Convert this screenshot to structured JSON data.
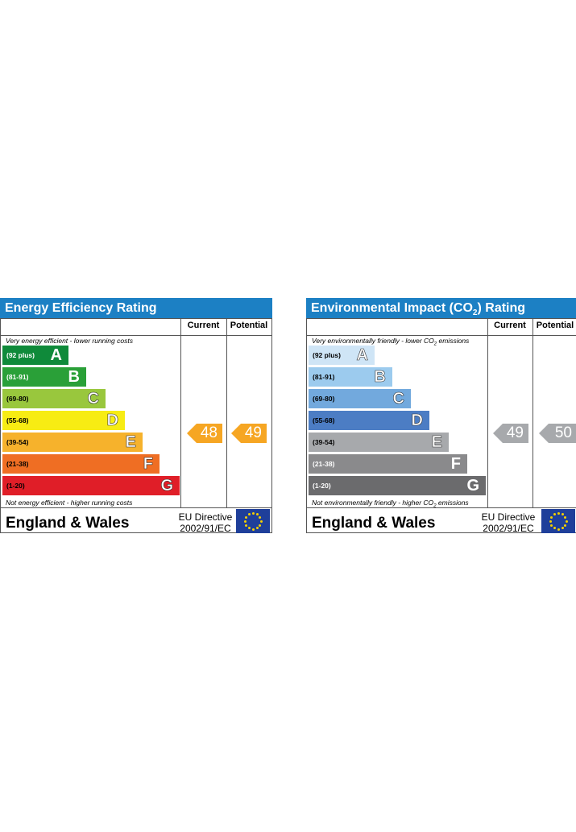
{
  "chart_data": [
    {
      "type": "bar",
      "title": "Energy Efficiency Rating",
      "columns": [
        "Current",
        "Potential"
      ],
      "top_note": "Very energy efficient - lower running costs",
      "bottom_note": "Not energy efficient - higher running costs",
      "bands": [
        {
          "range": "(92 plus)",
          "letter": "A",
          "color": "#0f8a3a",
          "text_color": "#ffffff"
        },
        {
          "range": "(81-91)",
          "letter": "B",
          "color": "#2aa038",
          "text_color": "#ffffff"
        },
        {
          "range": "(69-80)",
          "letter": "C",
          "color": "#99c73d",
          "text_color": "#000000"
        },
        {
          "range": "(55-68)",
          "letter": "D",
          "color": "#f7ec13",
          "text_color": "#000000"
        },
        {
          "range": "(39-54)",
          "letter": "E",
          "color": "#f6b22c",
          "text_color": "#000000"
        },
        {
          "range": "(21-38)",
          "letter": "F",
          "color": "#ef6e23",
          "text_color": "#000000"
        },
        {
          "range": "(1-20)",
          "letter": "G",
          "color": "#e01e28",
          "text_color": "#000000"
        }
      ],
      "current": {
        "value": 48,
        "band": "E",
        "color": "#f6a623"
      },
      "potential": {
        "value": 49,
        "band": "E",
        "color": "#f6a623"
      },
      "footer": {
        "region": "England & Wales",
        "directive_line1": "EU Directive",
        "directive_line2": "2002/91/EC"
      }
    },
    {
      "type": "bar",
      "title_main": "Environmental Impact (CO",
      "title_sub": "2",
      "title_end": ") Rating",
      "columns": [
        "Current",
        "Potential"
      ],
      "top_note_main": "Very environmentally friendly - lower CO",
      "top_note_sub": "2",
      "top_note_end": " emissions",
      "bottom_note_main": "Not environmentally friendly - higher CO",
      "bottom_note_sub": "2",
      "bottom_note_end": " emissions",
      "bands": [
        {
          "range": "(92 plus)",
          "letter": "A",
          "color": "#cfe5f6",
          "text_color": "#000000"
        },
        {
          "range": "(81-91)",
          "letter": "B",
          "color": "#9ccbee",
          "text_color": "#000000"
        },
        {
          "range": "(69-80)",
          "letter": "C",
          "color": "#72a9dd",
          "text_color": "#000000"
        },
        {
          "range": "(55-68)",
          "letter": "D",
          "color": "#4c7dc4",
          "text_color": "#000000"
        },
        {
          "range": "(39-54)",
          "letter": "E",
          "color": "#a7a9ac",
          "text_color": "#000000"
        },
        {
          "range": "(21-38)",
          "letter": "F",
          "color": "#8a8a8c",
          "text_color": "#ffffff"
        },
        {
          "range": "(1-20)",
          "letter": "G",
          "color": "#6b6b6d",
          "text_color": "#ffffff"
        }
      ],
      "current": {
        "value": 49,
        "band": "E",
        "color": "#a7a9ac"
      },
      "potential": {
        "value": 50,
        "band": "E",
        "color": "#a7a9ac"
      },
      "footer": {
        "region": "England & Wales",
        "directive_line1": "EU Directive",
        "directive_line2": "2002/91/EC"
      }
    }
  ]
}
